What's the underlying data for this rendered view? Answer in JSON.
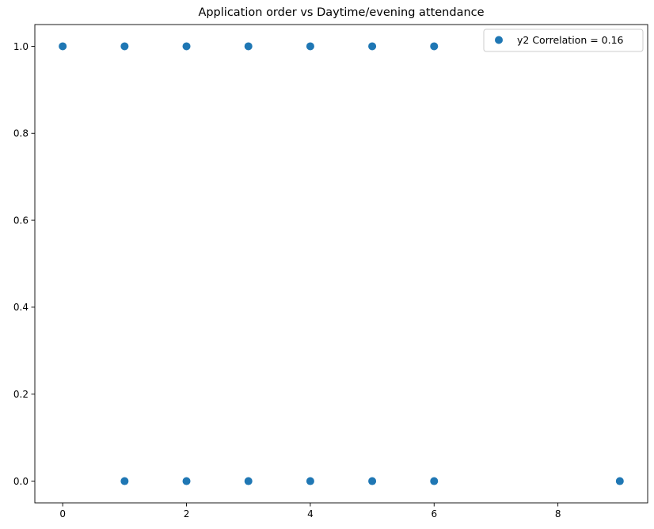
{
  "chart_data": {
    "type": "scatter",
    "title": "Application order vs Daytime/evening attendance\t",
    "xlabel": "",
    "ylabel": "",
    "xlim": [
      -0.45,
      9.45
    ],
    "ylim": [
      -0.05,
      1.05
    ],
    "x_ticks": [
      "0",
      "2",
      "4",
      "6",
      "8"
    ],
    "y_ticks": [
      "0.0",
      "0.2",
      "0.4",
      "0.6",
      "0.8",
      "1.0"
    ],
    "x_tick_values": [
      0,
      2,
      4,
      6,
      8
    ],
    "y_tick_values": [
      0.0,
      0.2,
      0.4,
      0.6,
      0.8,
      1.0
    ],
    "grid": false,
    "legend_position": "top-right",
    "series": [
      {
        "name": "y2 Correlation = 0.16",
        "color": "#1f77b4",
        "points": [
          {
            "x": 0,
            "y": 1
          },
          {
            "x": 1,
            "y": 1
          },
          {
            "x": 2,
            "y": 1
          },
          {
            "x": 3,
            "y": 1
          },
          {
            "x": 4,
            "y": 1
          },
          {
            "x": 5,
            "y": 1
          },
          {
            "x": 6,
            "y": 1
          },
          {
            "x": 1,
            "y": 0
          },
          {
            "x": 2,
            "y": 0
          },
          {
            "x": 3,
            "y": 0
          },
          {
            "x": 4,
            "y": 0
          },
          {
            "x": 5,
            "y": 0
          },
          {
            "x": 6,
            "y": 0
          },
          {
            "x": 9,
            "y": 0
          }
        ]
      }
    ]
  }
}
